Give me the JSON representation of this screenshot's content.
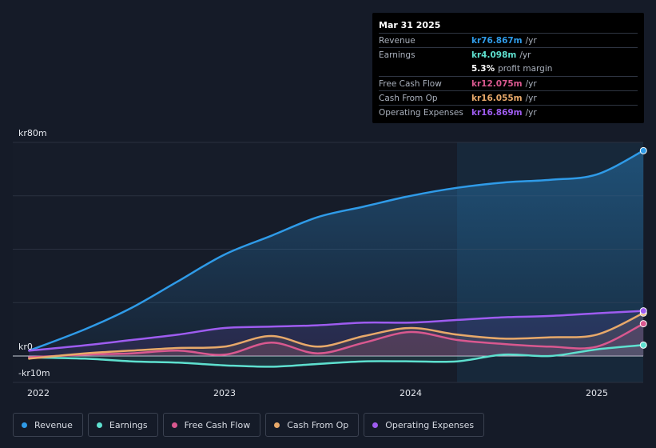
{
  "tooltip": {
    "date": "Mar 31 2025",
    "rows": [
      {
        "label": "Revenue",
        "value": "kr76.867m",
        "unit": "/yr",
        "color": "#2f9be8"
      },
      {
        "label": "Earnings",
        "value": "kr4.098m",
        "unit": "/yr",
        "color": "#5ee0cf"
      },
      {
        "label": "",
        "value": "5.3%",
        "unit": "profit margin",
        "color": "#ffffff"
      },
      {
        "label": "Free Cash Flow",
        "value": "kr12.075m",
        "unit": "/yr",
        "color": "#d9588f"
      },
      {
        "label": "Cash From Op",
        "value": "kr16.055m",
        "unit": "/yr",
        "color": "#e8a96a"
      },
      {
        "label": "Operating Expenses",
        "value": "kr16.869m",
        "unit": "/yr",
        "color": "#9e5cf0"
      }
    ]
  },
  "legend": [
    {
      "label": "Revenue",
      "color": "#2f9be8"
    },
    {
      "label": "Earnings",
      "color": "#5ee0cf"
    },
    {
      "label": "Free Cash Flow",
      "color": "#d9588f"
    },
    {
      "label": "Cash From Op",
      "color": "#e8a96a"
    },
    {
      "label": "Operating Expenses",
      "color": "#9e5cf0"
    }
  ],
  "chart_data": {
    "type": "area",
    "x_tick_labels": [
      "2022",
      "2023",
      "2024",
      "2025"
    ],
    "y_tick_labels": [
      "kr80m",
      "kr0",
      "-kr10m"
    ],
    "ylim": [
      -10,
      80
    ],
    "xlim": [
      2021.95,
      2025.25
    ],
    "grid": true,
    "highlight_from": 2024.25,
    "series": [
      {
        "name": "Revenue",
        "color": "#2f9be8",
        "x": [
          2021.95,
          2022.25,
          2022.5,
          2022.75,
          2023.0,
          2023.25,
          2023.5,
          2023.75,
          2024.0,
          2024.25,
          2024.5,
          2024.75,
          2025.0,
          2025.25
        ],
        "y": [
          2.0,
          10.0,
          18.0,
          28.0,
          38.0,
          45.0,
          52.0,
          56.0,
          60.0,
          63.0,
          65.0,
          66.0,
          68.0,
          76.9
        ]
      },
      {
        "name": "Earnings",
        "color": "#5ee0cf",
        "x": [
          2021.95,
          2022.25,
          2022.5,
          2022.75,
          2023.0,
          2023.25,
          2023.5,
          2023.75,
          2024.0,
          2024.25,
          2024.5,
          2024.75,
          2025.0,
          2025.25
        ],
        "y": [
          -0.5,
          -1.0,
          -2.0,
          -2.5,
          -3.5,
          -4.0,
          -3.0,
          -2.0,
          -2.0,
          -2.0,
          0.5,
          0.0,
          2.5,
          4.1
        ]
      },
      {
        "name": "Free Cash Flow",
        "color": "#d9588f",
        "x": [
          2021.95,
          2022.25,
          2022.5,
          2022.75,
          2023.0,
          2023.25,
          2023.5,
          2023.75,
          2024.0,
          2024.25,
          2024.5,
          2024.75,
          2025.0,
          2025.25
        ],
        "y": [
          -0.5,
          0.5,
          1.0,
          2.0,
          0.5,
          5.0,
          1.0,
          5.0,
          9.0,
          6.0,
          4.5,
          3.5,
          3.5,
          12.1
        ]
      },
      {
        "name": "Cash From Op",
        "color": "#e8a96a",
        "x": [
          2021.95,
          2022.25,
          2022.5,
          2022.75,
          2023.0,
          2023.25,
          2023.5,
          2023.75,
          2024.0,
          2024.25,
          2024.5,
          2024.75,
          2025.0,
          2025.25
        ],
        "y": [
          -1.0,
          1.0,
          2.0,
          3.0,
          3.5,
          7.5,
          3.5,
          7.5,
          10.5,
          8.0,
          6.5,
          7.0,
          8.0,
          16.1
        ]
      },
      {
        "name": "Operating Expenses",
        "color": "#9e5cf0",
        "x": [
          2021.95,
          2022.25,
          2022.5,
          2022.75,
          2023.0,
          2023.25,
          2023.5,
          2023.75,
          2024.0,
          2024.25,
          2024.5,
          2024.75,
          2025.0,
          2025.25
        ],
        "y": [
          2.0,
          4.0,
          6.0,
          8.0,
          10.5,
          11.0,
          11.5,
          12.5,
          12.5,
          13.5,
          14.5,
          15.0,
          16.0,
          16.9
        ]
      }
    ]
  }
}
